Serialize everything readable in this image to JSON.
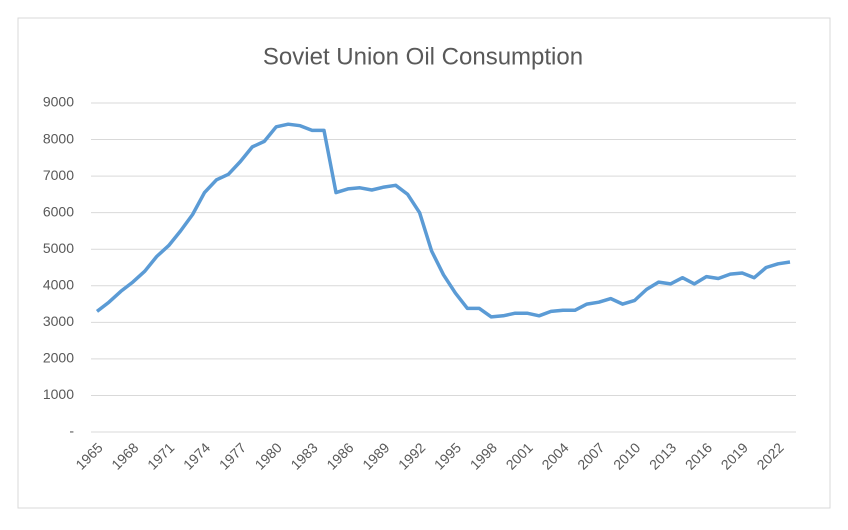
{
  "chart_data": {
    "type": "line",
    "title": "Soviet Union Oil Consumption",
    "x": [
      1965,
      1966,
      1967,
      1968,
      1969,
      1970,
      1971,
      1972,
      1973,
      1974,
      1975,
      1976,
      1977,
      1978,
      1979,
      1980,
      1981,
      1982,
      1983,
      1984,
      1985,
      1986,
      1987,
      1988,
      1989,
      1990,
      1991,
      1992,
      1993,
      1994,
      1995,
      1996,
      1997,
      1998,
      1999,
      2000,
      2001,
      2002,
      2003,
      2004,
      2005,
      2006,
      2007,
      2008,
      2009,
      2010,
      2011,
      2012,
      2013,
      2014,
      2015,
      2016,
      2017,
      2018,
      2019,
      2020,
      2021,
      2022,
      2023
    ],
    "series": [
      {
        "name": "Oil Consumption",
        "color": "#5b9bd5",
        "values": [
          3300,
          3550,
          3850,
          4100,
          4400,
          4800,
          5100,
          5500,
          5950,
          6550,
          6900,
          7050,
          7400,
          7800,
          7950,
          8350,
          8420,
          8380,
          8250,
          8250,
          6550,
          6650,
          6680,
          6620,
          6700,
          6750,
          6500,
          6000,
          4950,
          4300,
          3800,
          3380,
          3380,
          3150,
          3180,
          3250,
          3250,
          3180,
          3300,
          3330,
          3330,
          3500,
          3550,
          3650,
          3500,
          3600,
          3900,
          4100,
          4050,
          4220,
          4050,
          4250,
          4200,
          4320,
          4350,
          4220,
          4500,
          4600,
          4650
        ]
      }
    ],
    "xlim": [
      1964.5,
      2023.5
    ],
    "xticks": [
      1965,
      1968,
      1971,
      1974,
      1977,
      1980,
      1983,
      1986,
      1989,
      1992,
      1995,
      1998,
      2001,
      2004,
      2007,
      2010,
      2013,
      2016,
      2019,
      2022
    ],
    "ylim": [
      0,
      9000
    ],
    "yticks": [
      {
        "value": 0,
        "label": "-"
      },
      1000,
      2000,
      3000,
      4000,
      5000,
      6000,
      7000,
      8000,
      9000
    ],
    "grid": true
  }
}
